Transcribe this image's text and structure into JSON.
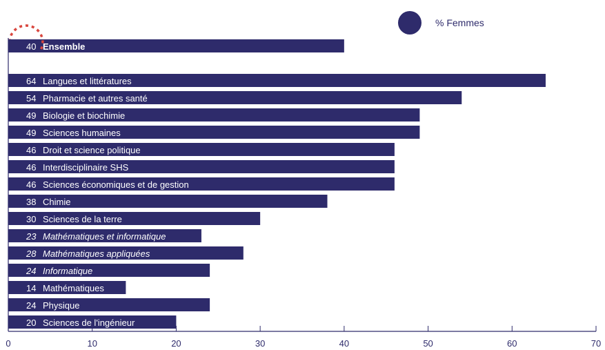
{
  "chart_data": {
    "type": "bar",
    "orientation": "horizontal",
    "title": "",
    "xlabel": "",
    "ylabel": "",
    "xlim": [
      0,
      70
    ],
    "x_ticks": [
      0,
      10,
      20,
      30,
      40,
      50,
      60,
      70
    ],
    "grid": false,
    "legend": {
      "position": "top-right",
      "entries": [
        {
          "name": "% Femmes",
          "color": "#2e2b6b"
        }
      ]
    },
    "bar_color": "#2e2b6b",
    "label_color": "#ffffff",
    "highlight_color": "#d9473f",
    "series": [
      {
        "name": "% Femmes",
        "values": [
          40,
          64,
          54,
          49,
          49,
          46,
          46,
          46,
          38,
          30,
          23,
          28,
          24,
          14,
          24,
          20
        ]
      }
    ],
    "categories": [
      {
        "label": "Ensemble",
        "value": 40,
        "style": "bold",
        "highlighted": true
      },
      {
        "label": "Langues et littératures",
        "value": 64,
        "style": "normal"
      },
      {
        "label": "Pharmacie et autres santé",
        "value": 54,
        "style": "normal"
      },
      {
        "label": "Biologie et biochimie",
        "value": 49,
        "style": "normal"
      },
      {
        "label": "Sciences humaines",
        "value": 49,
        "style": "normal"
      },
      {
        "label": "Droit et science politique",
        "value": 46,
        "style": "normal"
      },
      {
        "label": "Interdisciplinaire SHS",
        "value": 46,
        "style": "normal"
      },
      {
        "label": "Sciences économiques et de gestion",
        "value": 46,
        "style": "normal"
      },
      {
        "label": "Chimie",
        "value": 38,
        "style": "normal"
      },
      {
        "label": "Sciences de la terre",
        "value": 30,
        "style": "normal"
      },
      {
        "label": "Mathématiques et informatique",
        "value": 23,
        "style": "italic"
      },
      {
        "label": "Mathématiques appliquées",
        "value": 28,
        "style": "italic"
      },
      {
        "label": "Informatique",
        "value": 24,
        "style": "italic"
      },
      {
        "label": "Mathématiques",
        "value": 14,
        "style": "normal"
      },
      {
        "label": "Physique",
        "value": 24,
        "style": "normal"
      },
      {
        "label": "Sciences de l'ingénieur",
        "value": 20,
        "style": "normal"
      }
    ]
  }
}
